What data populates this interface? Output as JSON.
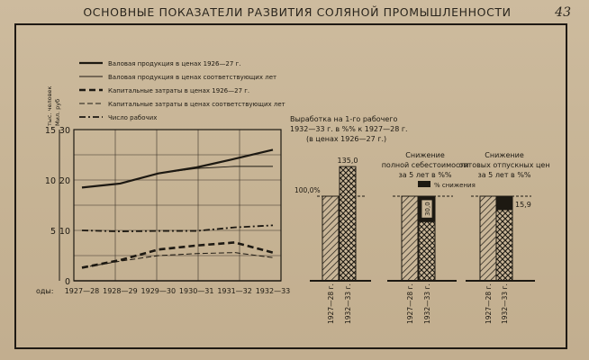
{
  "header": {
    "title": "ОСНОВНЫЕ ПОКАЗАТЕЛИ РАЗВИТИЯ СОЛЯНОЙ ПРОМЫШЛЕННОСТИ",
    "page_number": "43"
  },
  "chart_data": [
    {
      "type": "line",
      "title": "",
      "x": [
        "1927—28",
        "1928—29",
        "1929—30",
        "1930—31",
        "1931—32",
        "1932—33"
      ],
      "x_prefix": "оды:",
      "y_axes": [
        {
          "label": "Мил. руб",
          "ticks": [
            "30",
            "20",
            "10",
            "0"
          ],
          "range": [
            0,
            30
          ]
        },
        {
          "label": "тыс. человек",
          "ticks": [
            "15",
            "10",
            "5"
          ],
          "range": [
            0,
            15
          ]
        }
      ],
      "legend": {
        "placement": "top-left",
        "entries": [
          "Валовая продукция в ценах 1926—27 г.",
          "Валовая продукция в ценах соответствующих лет",
          "Капитальные затраты в ценах 1926—27 г.",
          "Капитальные затраты в ценах соответствующих лет",
          "Число рабочих"
        ]
      },
      "series": [
        {
          "name": "Валовая продукция в ценах 1926—27 г.",
          "style": "thick-solid",
          "values": [
            18.5,
            19.3,
            21.3,
            22.5,
            24.2,
            26
          ]
        },
        {
          "name": "Валовая продукция в ценах соответствующих лет",
          "style": "thin-solid",
          "values": [
            18.5,
            19.3,
            21.3,
            22.3,
            22.7,
            22.7
          ]
        },
        {
          "name": "Капитальные затраты в ценах 1926—27 г.",
          "style": "thick-dashed",
          "values": [
            2.6,
            4.1,
            6.2,
            7,
            7.6,
            5.6
          ]
        },
        {
          "name": "Капитальные затраты в ценах соответствующих лет",
          "style": "thin-dashed",
          "values": [
            2.6,
            3.9,
            5,
            5.4,
            5.6,
            4.6
          ]
        },
        {
          "name": "Число рабочих",
          "style": "dash-dot",
          "values": [
            10,
            9.8,
            9.9,
            9.9,
            10.6,
            11
          ]
        }
      ],
      "grid": true
    },
    {
      "type": "bar",
      "title": "Выработка на 1-го рабочего 1932—33 г. в %% к 1927—28 г. (в ценах 1926—27 г.)",
      "categories": [
        "1927—28 г.",
        "1932—33 г."
      ],
      "values": [
        100,
        135
      ],
      "data_labels": [
        "",
        "135,0"
      ],
      "baseline_label": "100,0%"
    },
    {
      "type": "bar",
      "title": "Снижение полной себестоимости за 5 лет в %%",
      "categories": [
        "1927—28 г.",
        "1932—33 г."
      ],
      "values": [
        100,
        100
      ],
      "reduction": 30,
      "data_labels": [
        "",
        "30,0"
      ],
      "legend_note": "% снижения"
    },
    {
      "type": "bar",
      "title": "Снижение оптовых отпускных цен за 5 лет в %%",
      "categories": [
        "1927—28 г.",
        "1932—33 г."
      ],
      "values": [
        100,
        100
      ],
      "reduction": 15.9,
      "data_labels": [
        "",
        "15,9"
      ]
    }
  ]
}
